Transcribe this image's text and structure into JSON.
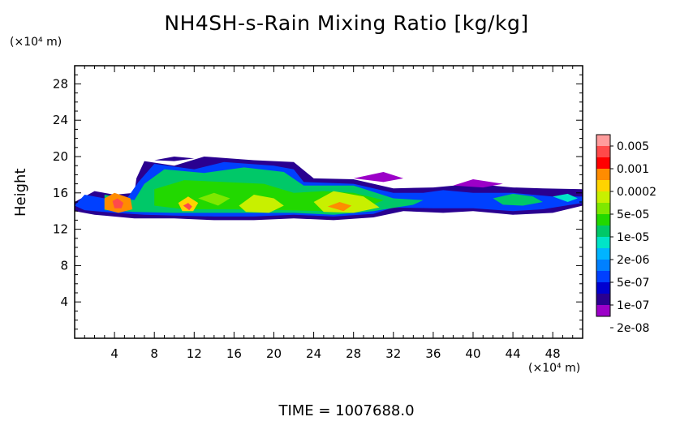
{
  "chart_data": {
    "type": "heatmap",
    "title": "NH4SH-s-Rain Mixing Ratio [kg/kg]",
    "ylabel": "Height",
    "y_unit": "(×10⁴ m)",
    "x_unit": "(×10⁴ m)",
    "footer": "TIME = 1007688.0",
    "xlim": [
      0,
      51
    ],
    "ylim": [
      0,
      30
    ],
    "x_ticks": [
      "4",
      "8",
      "12",
      "16",
      "20",
      "24",
      "28",
      "32",
      "36",
      "40",
      "44",
      "48"
    ],
    "y_ticks": [
      "4",
      "8",
      "12",
      "16",
      "20",
      "24",
      "28"
    ],
    "colorbar_labels": [
      "0.005",
      "0.001",
      "0.0002",
      "5e-05",
      "1e-05",
      "2e-06",
      "5e-07",
      "1e-07",
      "2e-08"
    ],
    "colorbar_colors": [
      "#ff9c9c",
      "#ff4a4a",
      "#ff0000",
      "#ff8c00",
      "#ffd400",
      "#c8f000",
      "#7ee800",
      "#22d800",
      "#00c868",
      "#00e4c8",
      "#00b4ff",
      "#0080ff",
      "#0040ff",
      "#0000d0",
      "#2a0090",
      "#9c00c8"
    ],
    "regions": [
      {
        "name": "main-band-edge",
        "level": 1,
        "points": [
          [
            0,
            15
          ],
          [
            2,
            16.2
          ],
          [
            4,
            15.8
          ],
          [
            6,
            16
          ],
          [
            6.2,
            17.6
          ],
          [
            7,
            19.5
          ],
          [
            10,
            19
          ],
          [
            13,
            20
          ],
          [
            18,
            19.6
          ],
          [
            22,
            19.4
          ],
          [
            24,
            17.6
          ],
          [
            28,
            17.5
          ],
          [
            32,
            16.5
          ],
          [
            36,
            16.6
          ],
          [
            40,
            17
          ],
          [
            44,
            16.6
          ],
          [
            47,
            16.5
          ],
          [
            51,
            16.4
          ],
          [
            51,
            14.6
          ],
          [
            48,
            13.8
          ],
          [
            44,
            13.6
          ],
          [
            40,
            14
          ],
          [
            37,
            13.8
          ],
          [
            33,
            14
          ],
          [
            30,
            13.3
          ],
          [
            26,
            13
          ],
          [
            22,
            13.2
          ],
          [
            18,
            13
          ],
          [
            14,
            13
          ],
          [
            10,
            13.2
          ],
          [
            6,
            13.2
          ],
          [
            2,
            13.6
          ],
          [
            0,
            14
          ]
        ]
      },
      {
        "name": "main-band",
        "level": 3,
        "points": [
          [
            0,
            14.6
          ],
          [
            1,
            15.8
          ],
          [
            3,
            15.4
          ],
          [
            5,
            15
          ],
          [
            6.4,
            17.2
          ],
          [
            8,
            19.2
          ],
          [
            12,
            18.6
          ],
          [
            15,
            19.4
          ],
          [
            20,
            19
          ],
          [
            22,
            18.6
          ],
          [
            23,
            17.2
          ],
          [
            28,
            17
          ],
          [
            32,
            16
          ],
          [
            35,
            16
          ],
          [
            37,
            16.3
          ],
          [
            40,
            16
          ],
          [
            44,
            16
          ],
          [
            48,
            15.6
          ],
          [
            51,
            15.6
          ],
          [
            51,
            14.9
          ],
          [
            47,
            14.2
          ],
          [
            44,
            14
          ],
          [
            40,
            14.3
          ],
          [
            36,
            14.3
          ],
          [
            32,
            14.4
          ],
          [
            30,
            13.7
          ],
          [
            26,
            13.4
          ],
          [
            22,
            13.6
          ],
          [
            18,
            13.4
          ],
          [
            14,
            13.4
          ],
          [
            10,
            13.5
          ],
          [
            7,
            13.6
          ],
          [
            4,
            13.8
          ],
          [
            1,
            14.1
          ]
        ]
      },
      {
        "name": "main-band-core",
        "level": 7,
        "points": [
          [
            3,
            15.8
          ],
          [
            6,
            15.2
          ],
          [
            7,
            17
          ],
          [
            9,
            18.6
          ],
          [
            13,
            18.2
          ],
          [
            17,
            18.8
          ],
          [
            21,
            18.3
          ],
          [
            23,
            16.8
          ],
          [
            28,
            16.8
          ],
          [
            32,
            15.4
          ],
          [
            35,
            15.2
          ],
          [
            34,
            14.7
          ],
          [
            30,
            14
          ],
          [
            26,
            13.6
          ],
          [
            22,
            13.8
          ],
          [
            18,
            13.8
          ],
          [
            14,
            13.8
          ],
          [
            10,
            13.8
          ],
          [
            6,
            13.9
          ],
          [
            3,
            14.1
          ]
        ]
      },
      {
        "name": "main-band-inner",
        "level": 8,
        "points": [
          [
            8,
            16.4
          ],
          [
            11,
            17.4
          ],
          [
            15,
            17.2
          ],
          [
            19,
            17
          ],
          [
            22,
            16
          ],
          [
            25,
            16.2
          ],
          [
            28,
            16
          ],
          [
            31,
            15.2
          ],
          [
            29,
            14.3
          ],
          [
            25,
            14
          ],
          [
            21,
            14.1
          ],
          [
            16,
            14.2
          ],
          [
            11,
            14.2
          ],
          [
            8,
            14.6
          ]
        ]
      },
      {
        "name": "cell-a",
        "level": 12,
        "points": [
          [
            3,
            15.4
          ],
          [
            4,
            16
          ],
          [
            5.6,
            15.4
          ],
          [
            5.8,
            14.2
          ],
          [
            4.4,
            13.8
          ],
          [
            3,
            14.2
          ]
        ]
      },
      {
        "name": "cell-a-core",
        "level": 14,
        "points": [
          [
            3.8,
            15.1
          ],
          [
            4.3,
            15.4
          ],
          [
            4.9,
            14.9
          ],
          [
            4.7,
            14.3
          ],
          [
            4,
            14.3
          ]
        ]
      },
      {
        "name": "cell-b",
        "level": 11,
        "points": [
          [
            10.4,
            14.9
          ],
          [
            11.4,
            15.6
          ],
          [
            12.4,
            14.9
          ],
          [
            11.9,
            14
          ],
          [
            10.8,
            14
          ]
        ]
      },
      {
        "name": "cell-b-core",
        "level": 14,
        "points": [
          [
            10.9,
            14.6
          ],
          [
            11.4,
            14.9
          ],
          [
            11.8,
            14.5
          ],
          [
            11.5,
            14.1
          ]
        ]
      },
      {
        "name": "cell-c",
        "level": 10,
        "points": [
          [
            16.5,
            14.6
          ],
          [
            18,
            15.8
          ],
          [
            20,
            15.4
          ],
          [
            21,
            14.6
          ],
          [
            19.5,
            13.8
          ],
          [
            17.2,
            13.9
          ]
        ]
      },
      {
        "name": "cell-d",
        "level": 10,
        "points": [
          [
            24,
            15
          ],
          [
            26,
            16.2
          ],
          [
            29,
            15.6
          ],
          [
            30.6,
            14.4
          ],
          [
            28,
            13.8
          ],
          [
            25,
            13.9
          ]
        ]
      },
      {
        "name": "cell-d-core",
        "level": 12,
        "points": [
          [
            25.4,
            14.5
          ],
          [
            26.6,
            15
          ],
          [
            27.8,
            14.6
          ],
          [
            27,
            14
          ]
        ]
      },
      {
        "name": "cell-e",
        "level": 9,
        "points": [
          [
            12.4,
            15.4
          ],
          [
            14,
            16
          ],
          [
            15.6,
            15.4
          ],
          [
            14.4,
            14.6
          ]
        ]
      },
      {
        "name": "right-blob",
        "level": 7,
        "points": [
          [
            42,
            15.4
          ],
          [
            44,
            15.9
          ],
          [
            46,
            15.6
          ],
          [
            47,
            15
          ],
          [
            45,
            14.6
          ],
          [
            43,
            14.7
          ]
        ]
      },
      {
        "name": "right-blob-small",
        "level": 6,
        "points": [
          [
            48,
            15.6
          ],
          [
            49.5,
            15.9
          ],
          [
            50.5,
            15.4
          ],
          [
            49.5,
            15
          ]
        ]
      },
      {
        "name": "wisp-top-left",
        "level": 1,
        "points": [
          [
            8,
            19.6
          ],
          [
            10,
            20
          ],
          [
            12,
            19.8
          ],
          [
            10,
            19.5
          ]
        ]
      },
      {
        "name": "wisp-mid",
        "level": 0,
        "points": [
          [
            28,
            17.6
          ],
          [
            31,
            18.3
          ],
          [
            33,
            17.6
          ],
          [
            31,
            17.2
          ]
        ]
      },
      {
        "name": "wisp-right",
        "level": 0,
        "points": [
          [
            38,
            16.8
          ],
          [
            40,
            17.5
          ],
          [
            43,
            17
          ],
          [
            41,
            16.6
          ]
        ]
      }
    ]
  }
}
